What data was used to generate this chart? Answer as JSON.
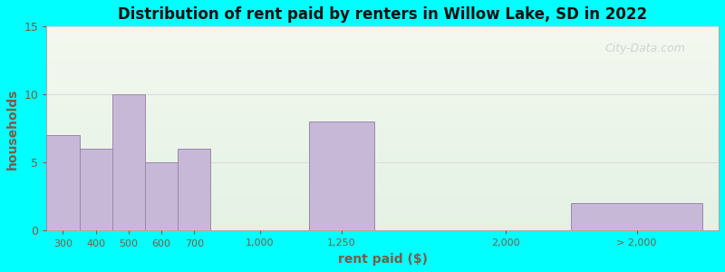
{
  "title": "Distribution of rent paid by renters in Willow Lake, SD in 2022",
  "xlabel": "rent paid ($)",
  "ylabel": "households",
  "bar_labels": [
    "300",
    "400",
    "500",
    "600",
    "700",
    "1,000",
    "1,250",
    "2,000",
    "> 2,000"
  ],
  "bar_values": [
    7,
    6,
    10,
    5,
    6,
    0,
    8,
    0,
    2
  ],
  "bar_left_edges": [
    0,
    1,
    2,
    3,
    4,
    6,
    8,
    12,
    16
  ],
  "bar_widths": [
    1,
    1,
    1,
    1,
    1,
    1,
    2,
    2,
    4
  ],
  "tick_positions": [
    0.5,
    1.5,
    2.5,
    3.5,
    4.5,
    6.5,
    9.0,
    14.0,
    18.0
  ],
  "ylim": [
    0,
    15
  ],
  "yticks": [
    0,
    5,
    10,
    15
  ],
  "xlim": [
    0,
    20.5
  ],
  "bar_color": "#c8b8d8",
  "bar_edge_color": "#9988aa",
  "background_color": "#00ffff",
  "plot_bg_top_color": "#f4f8f0",
  "plot_bg_bottom_color": "#e4f2e4",
  "title_color": "#111111",
  "axis_label_color": "#7a5c4a",
  "tick_label_color": "#7a5c4a",
  "watermark_text": "City-Data.com",
  "watermark_color": "#cccccc",
  "grid_color": "#dddddd",
  "figsize": [
    8.0,
    3.0
  ],
  "dpi": 100
}
